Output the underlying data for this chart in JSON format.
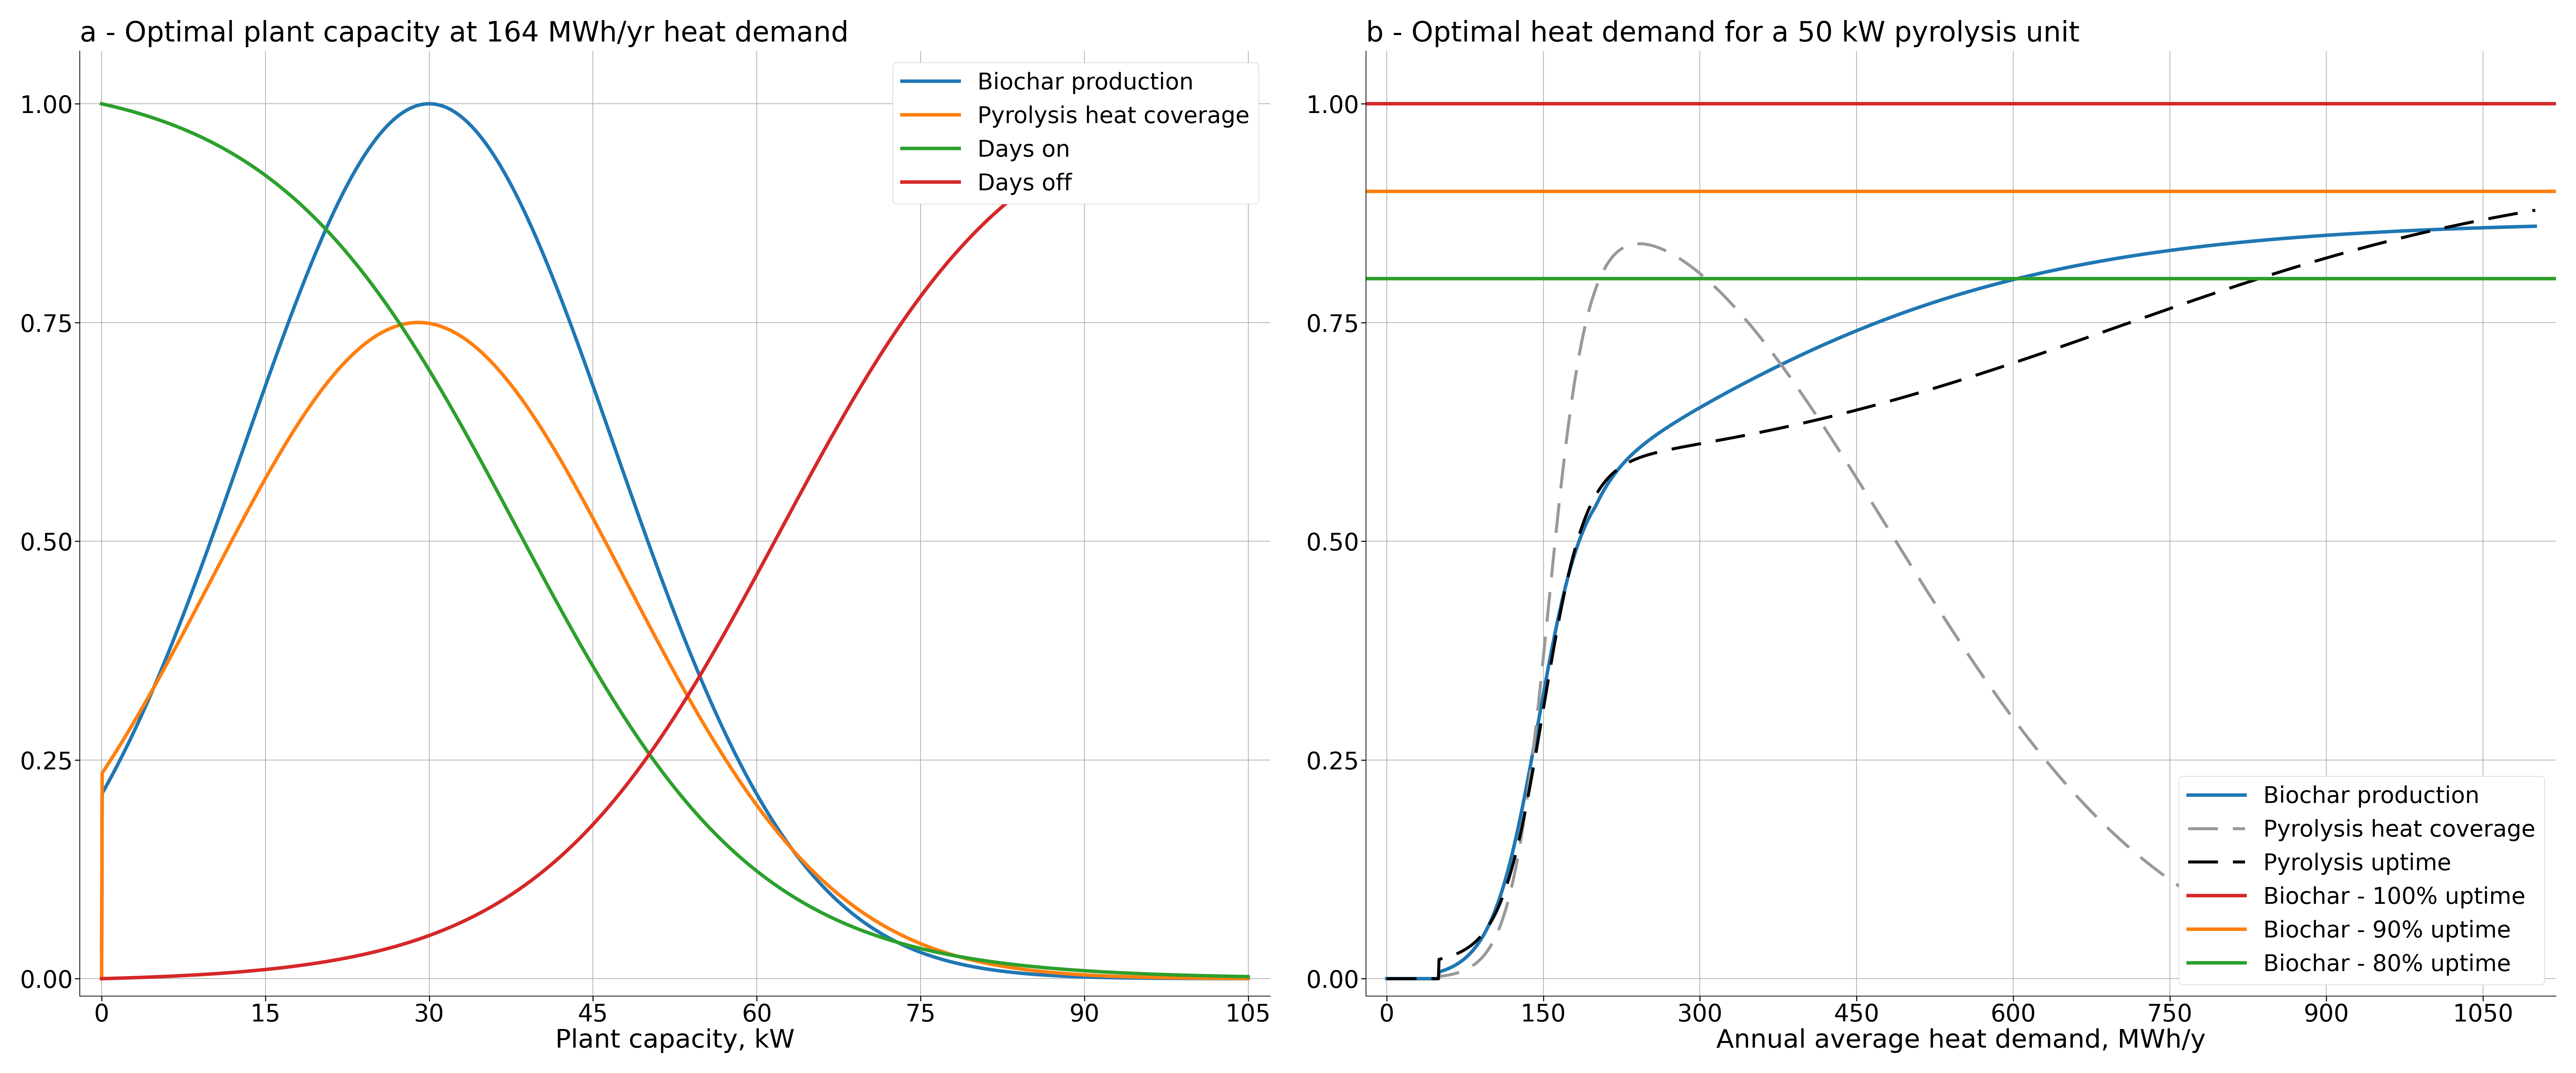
{
  "fig_width": 72.0,
  "fig_height": 30.0,
  "dpi": 100,
  "title_a": "a - Optimal plant capacity at 164 MWh/yr heat demand",
  "title_b": "b - Optimal heat demand for a 50 kW pyrolysis unit",
  "xlabel_a": "Plant capacity, kW",
  "xlabel_b": "Annual average heat demand, MWh/y",
  "xlim_a": [
    -2,
    107
  ],
  "ylim_a": [
    -0.02,
    1.06
  ],
  "xticks_a": [
    0,
    15,
    30,
    45,
    60,
    75,
    90,
    105
  ],
  "xlim_b": [
    -20,
    1120
  ],
  "ylim_b": [
    -0.02,
    1.06
  ],
  "xticks_b": [
    0,
    150,
    300,
    450,
    600,
    750,
    900,
    1050
  ],
  "legend_a": [
    "Biochar production",
    "Pyrolysis heat coverage",
    "Days on",
    "Days off"
  ],
  "legend_b": [
    "Biochar production",
    "Pyrolysis heat coverage",
    "Pyrolysis uptime",
    "Biochar - 100% uptime",
    "Biochar - 90% uptime",
    "Biochar - 80% uptime"
  ],
  "color_blue": "#1f77b4",
  "color_orange": "#ff7f0e",
  "color_green": "#2ca02c",
  "color_red": "#d62728",
  "color_gray": "#999999",
  "color_black": "#000000",
  "hline_100": 1.0,
  "hline_90": 0.9,
  "hline_80": 0.8,
  "bg_color": "#ffffff",
  "grid_color": "#b0b0b0",
  "title_fontsize": 56,
  "label_fontsize": 52,
  "tick_fontsize": 48,
  "legend_fontsize": 46,
  "linewidth": 7.0,
  "linewidth_dash": 6.0
}
